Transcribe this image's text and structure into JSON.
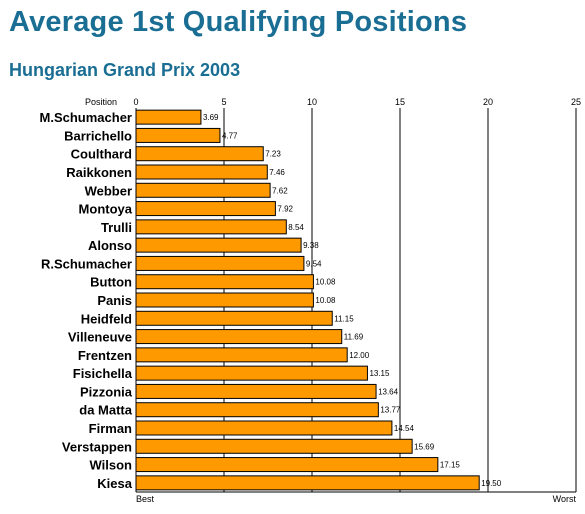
{
  "header": {
    "title": "Average 1st Qualifying Positions",
    "subtitle": "Hungarian Grand Prix 2003"
  },
  "colors": {
    "title": "#1a6e94",
    "bar_fill": "#ff9900",
    "bar_stroke": "#000000",
    "grid": "#000000"
  },
  "chart_data": {
    "type": "bar",
    "orientation": "horizontal",
    "title": "Average 1st Qualifying Positions",
    "subtitle": "Hungarian Grand Prix 2003",
    "axis_label": "Position",
    "x_ticks": [
      0,
      5,
      10,
      15,
      20,
      25
    ],
    "xlim": [
      0,
      25
    ],
    "axis_end_labels": {
      "min": "Best",
      "max": "Worst"
    },
    "grid": true,
    "categories": [
      "M.Schumacher",
      "Barrichello",
      "Coulthard",
      "Raikkonen",
      "Webber",
      "Montoya",
      "Trulli",
      "Alonso",
      "R.Schumacher",
      "Button",
      "Panis",
      "Heidfeld",
      "Villeneuve",
      "Frentzen",
      "Fisichella",
      "Pizzonia",
      "da Matta",
      "Firman",
      "Verstappen",
      "Wilson",
      "Kiesa"
    ],
    "values": [
      3.69,
      4.77,
      7.23,
      7.46,
      7.62,
      7.92,
      8.54,
      9.38,
      9.54,
      10.08,
      10.08,
      11.15,
      11.69,
      12.0,
      13.15,
      13.64,
      13.77,
      14.54,
      15.69,
      17.15,
      19.5
    ],
    "value_labels": [
      "3.69",
      "4.77",
      "7.23",
      "7.46",
      "7.62",
      "7.92",
      "8.54",
      "9.38",
      "9.54",
      "10.08",
      "10.08",
      "11.15",
      "11.69",
      "12.00",
      "13.15",
      "13.64",
      "13.77",
      "14.54",
      "15.69",
      "17.15",
      "19.50"
    ]
  }
}
